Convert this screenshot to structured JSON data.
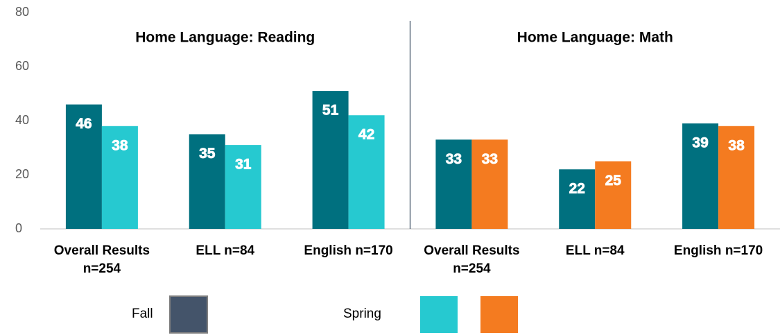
{
  "chart_data": {
    "type": "bar",
    "annotations": [
      "Home Language: Reading",
      "Home Language: Math"
    ],
    "categories": [
      "Overall Results n=254",
      "ELL n=84",
      "English n=170",
      "Overall Results n=254",
      "ELL n=84",
      "English n=170"
    ],
    "series": [
      {
        "name": "Fall",
        "color": "#00707f",
        "legend_color": "#44546a",
        "values": [
          46,
          35,
          51,
          33,
          22,
          39
        ]
      },
      {
        "name": "Spring",
        "color": [
          "#26c9d0",
          "#26c9d0",
          "#26c9d0",
          "#f47b20",
          "#f47b20",
          "#f47b20"
        ],
        "legend_color": [
          "#26c9d0",
          "#f47b20"
        ],
        "values": [
          38,
          31,
          42,
          33,
          25,
          38
        ]
      }
    ],
    "ylim": [
      0,
      80
    ],
    "yticks": [
      0,
      20,
      40,
      60,
      80
    ],
    "grid": false,
    "legend": "bottom"
  }
}
